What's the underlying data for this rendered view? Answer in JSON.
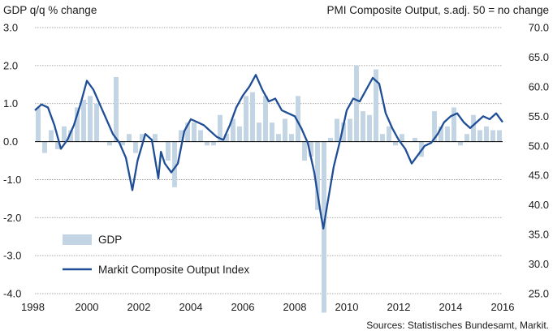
{
  "chart_data": {
    "type": "bar+line",
    "left_axis_title": "GDP q/q % change",
    "right_axis_title": "PMI Composite Output, s.adj. 50 = no change",
    "source": "Sources: Statistisches Bundesamt, Markit.",
    "left_axis": {
      "min": -4.0,
      "max": 3.0,
      "ticks": [
        -4.0,
        -3.0,
        -2.0,
        -1.0,
        0.0,
        1.0,
        2.0,
        3.0
      ],
      "tick_labels": [
        "-4.0",
        "-3.0",
        "-2.0",
        "-1.0",
        "0.0",
        "1.0",
        "2.0",
        "3.0"
      ]
    },
    "right_axis": {
      "min": 25.0,
      "max": 70.0,
      "ticks": [
        25.0,
        30.0,
        35.0,
        40.0,
        45.0,
        50.0,
        55.0,
        60.0,
        65.0,
        70.0
      ],
      "tick_labels": [
        "25.0",
        "30.0",
        "35.0",
        "40.0",
        "45.0",
        "50.0",
        "55.0",
        "60.0",
        "65.0",
        "70.0"
      ]
    },
    "x_axis": {
      "min": 1998.0,
      "max": 2016.0,
      "ticks": [
        1998,
        2000,
        2002,
        2004,
        2006,
        2008,
        2010,
        2012,
        2014,
        2016
      ],
      "tick_labels": [
        "1998",
        "2000",
        "2002",
        "2004",
        "2006",
        "2008",
        "2010",
        "2012",
        "2014",
        "2016"
      ]
    },
    "grid": "horizontal dashed at left-axis ticks",
    "legend_position": "bottom-left",
    "series": [
      {
        "name": "GDP",
        "kind": "bar",
        "axis": "left",
        "color": "#c3d4e4",
        "x": [
          1998.125,
          1998.375,
          1998.625,
          1998.875,
          1999.125,
          1999.375,
          1999.625,
          1999.875,
          2000.125,
          2000.375,
          2000.625,
          2000.875,
          2001.125,
          2001.375,
          2001.625,
          2001.875,
          2002.125,
          2002.375,
          2002.625,
          2002.875,
          2003.125,
          2003.375,
          2003.625,
          2003.875,
          2004.125,
          2004.375,
          2004.625,
          2004.875,
          2005.125,
          2005.375,
          2005.625,
          2005.875,
          2006.125,
          2006.375,
          2006.625,
          2006.875,
          2007.125,
          2007.375,
          2007.625,
          2007.875,
          2008.125,
          2008.375,
          2008.625,
          2008.875,
          2009.125,
          2009.375,
          2009.625,
          2009.875,
          2010.125,
          2010.375,
          2010.625,
          2010.875,
          2011.125,
          2011.375,
          2011.625,
          2011.875,
          2012.125,
          2012.375,
          2012.625,
          2012.875,
          2013.125,
          2013.375,
          2013.625,
          2013.875,
          2014.125,
          2014.375,
          2014.625,
          2014.875,
          2015.125,
          2015.375,
          2015.625,
          2015.875
        ],
        "values": [
          0.9,
          -0.3,
          0.3,
          -0.2,
          0.4,
          0.3,
          0.9,
          1.1,
          1.2,
          1.0,
          0.0,
          -0.1,
          1.7,
          -0.1,
          0.2,
          -0.3,
          0.2,
          0.0,
          0.2,
          0.0,
          -0.5,
          -1.2,
          0.3,
          0.5,
          0.5,
          0.3,
          -0.1,
          -0.1,
          0.7,
          0.2,
          0.6,
          0.4,
          1.2,
          1.3,
          0.5,
          1.2,
          0.5,
          0.2,
          0.6,
          0.2,
          1.2,
          -0.5,
          -0.4,
          -1.8,
          -4.5,
          0.1,
          0.6,
          0.5,
          0.6,
          2.0,
          0.8,
          0.7,
          1.9,
          0.2,
          0.4,
          -0.1,
          0.2,
          0.0,
          0.1,
          -0.4,
          0.0,
          0.8,
          0.4,
          0.4,
          0.9,
          -0.1,
          0.2,
          0.7,
          0.3,
          0.4,
          0.3,
          0.3
        ]
      },
      {
        "name": "Markit Composite Output Index",
        "kind": "line",
        "axis": "right",
        "color": "#1f4e96",
        "x": [
          1998.0,
          1998.25,
          1998.5,
          1998.75,
          1999.0,
          1999.25,
          1999.5,
          1999.75,
          2000.0,
          2000.25,
          2000.5,
          2000.75,
          2001.0,
          2001.25,
          2001.5,
          2001.75,
          2001.95,
          2002.25,
          2002.5,
          2002.75,
          2002.85,
          2003.0,
          2003.25,
          2003.5,
          2003.75,
          2004.0,
          2004.25,
          2004.5,
          2004.75,
          2005.0,
          2005.25,
          2005.5,
          2005.75,
          2006.0,
          2006.25,
          2006.5,
          2006.75,
          2007.0,
          2007.25,
          2007.5,
          2007.75,
          2008.0,
          2008.25,
          2008.5,
          2008.75,
          2009.0,
          2009.1,
          2009.25,
          2009.5,
          2009.75,
          2010.0,
          2010.25,
          2010.5,
          2010.75,
          2011.0,
          2011.25,
          2011.5,
          2011.75,
          2012.0,
          2012.25,
          2012.5,
          2012.75,
          2013.0,
          2013.25,
          2013.5,
          2013.75,
          2014.0,
          2014.25,
          2014.5,
          2014.75,
          2015.0,
          2015.25,
          2015.5,
          2015.75,
          2016.0
        ],
        "values": [
          56.0,
          57.0,
          56.5,
          53.5,
          49.5,
          51.0,
          53.5,
          57.0,
          61.0,
          59.5,
          57.0,
          54.5,
          52.0,
          50.5,
          48.0,
          42.5,
          47.5,
          52.0,
          51.0,
          44.5,
          49.0,
          47.0,
          45.5,
          47.0,
          52.5,
          54.5,
          54.0,
          53.5,
          52.5,
          51.5,
          51.0,
          53.5,
          56.5,
          58.5,
          60.0,
          62.0,
          59.5,
          57.5,
          58.0,
          56.0,
          55.5,
          55.0,
          53.0,
          50.5,
          45.5,
          38.5,
          36.0,
          40.0,
          46.5,
          51.0,
          56.0,
          58.0,
          57.5,
          59.5,
          61.5,
          60.5,
          55.5,
          53.0,
          51.0,
          49.5,
          47.0,
          48.5,
          50.0,
          50.5,
          52.0,
          54.0,
          55.0,
          55.5,
          54.0,
          53.0,
          54.0,
          55.0,
          54.5,
          55.5,
          54.0
        ]
      }
    ]
  }
}
